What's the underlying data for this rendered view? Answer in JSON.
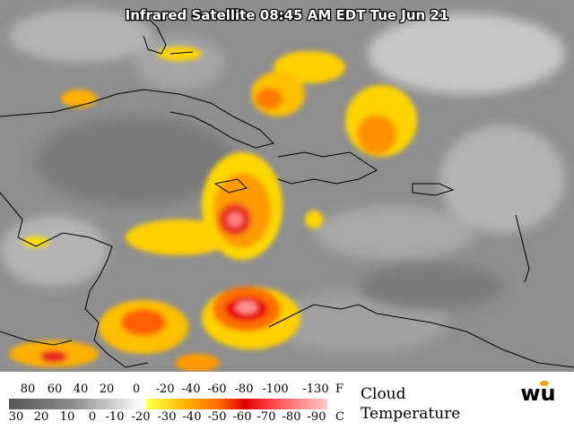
{
  "header": {
    "title": "Infrared Satellite 08:45 AM EDT Tue Jun 21"
  },
  "legend": {
    "fahrenheit": {
      "labels": [
        "80",
        "60",
        "40",
        "20",
        "0",
        "-20",
        "-40",
        "-60",
        "-80",
        "-100",
        "-130"
      ],
      "unit": "F"
    },
    "celsius": {
      "labels": [
        "30",
        "20",
        "10",
        "0",
        "-10",
        "-20",
        "-30",
        "-40",
        "-50",
        "-60",
        "-70",
        "-80",
        "-90"
      ],
      "unit": "C"
    },
    "title": [
      "Cloud",
      "Temperature"
    ]
  },
  "logo": "wu"
}
